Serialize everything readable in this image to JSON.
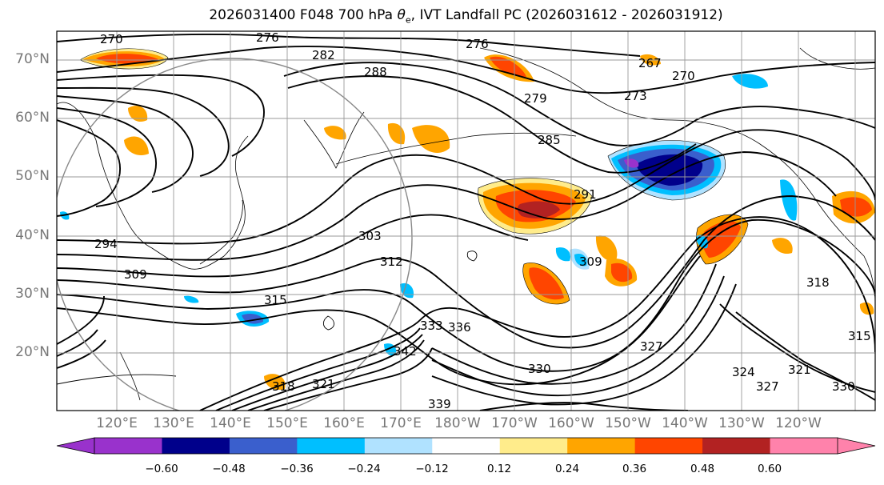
{
  "title": {
    "prefix": "2026031400 F048 700 hPa ",
    "theta_symbol": "θ",
    "theta_sub": "e",
    "suffix": ", IVT Landfall PC (2026031612 - 2026031912)"
  },
  "map": {
    "lat_labels": [
      "70°N",
      "60°N",
      "50°N",
      "40°N",
      "30°N",
      "20°N"
    ],
    "lon_labels": [
      "120°E",
      "130°E",
      "140°E",
      "150°E",
      "160°E",
      "170°E",
      "180°W",
      "170°W",
      "160°W",
      "150°W",
      "140°W",
      "130°W",
      "120°W"
    ],
    "contour_labels": [
      "270",
      "276",
      "282",
      "288",
      "276",
      "267",
      "270",
      "273",
      "279",
      "285",
      "291",
      "294",
      "303",
      "309",
      "315",
      "309",
      "312",
      "318",
      "321",
      "327",
      "330",
      "333",
      "336",
      "339",
      "342",
      "327",
      "324",
      "321",
      "330",
      "318",
      "315"
    ],
    "colors": {
      "grid": "#999999",
      "contour": "#000000"
    }
  },
  "colorbar": {
    "levels": [
      "−0.60",
      "−0.48",
      "−0.36",
      "−0.24",
      "−0.12",
      "0.12",
      "0.24",
      "0.36",
      "0.48",
      "0.60"
    ],
    "colors": [
      "#9932CC",
      "#00008B",
      "#3A5FCD",
      "#00BFFF",
      "#B0E2FF",
      "#FFFFFF",
      "#FFEC8B",
      "#FFA500",
      "#FF4500",
      "#B22222",
      "#FF82AB"
    ]
  }
}
